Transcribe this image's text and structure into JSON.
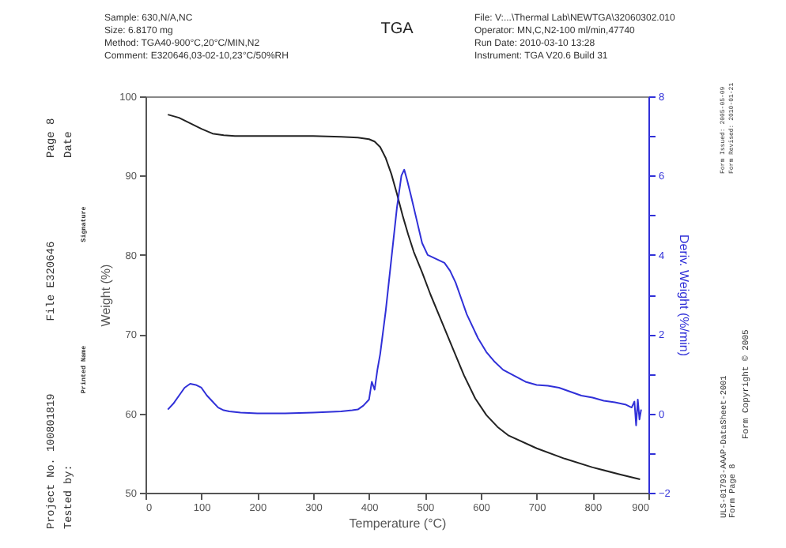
{
  "chart_data": {
    "type": "line",
    "title": "TGA",
    "xlabel": "Temperature (°C)",
    "ylabel": "Weight (%)",
    "y2label": "Deriv. Weight (%/min)",
    "xlim": [
      0,
      900
    ],
    "xticks": [
      0,
      100,
      200,
      300,
      400,
      500,
      600,
      700,
      800,
      900
    ],
    "ylim": [
      50,
      100
    ],
    "yticks": [
      50,
      60,
      70,
      80,
      90,
      100
    ],
    "y2lim": [
      -2,
      8
    ],
    "y2ticks": [
      -2,
      {
        "value": -1,
        "label": null
      },
      0,
      {
        "value": 1,
        "label": null
      },
      2,
      {
        "value": 3,
        "label": null
      },
      4,
      {
        "value": 5,
        "label": null
      },
      6,
      {
        "value": 7,
        "label": null
      },
      8
    ],
    "grid": false,
    "series": [
      {
        "color": "#222222",
        "x": [
          40,
          60,
          80,
          100,
          120,
          140,
          160,
          200,
          250,
          300,
          350,
          380,
          400,
          410,
          420,
          430,
          440,
          450,
          460,
          470,
          480,
          495,
          510,
          530,
          550,
          570,
          590,
          610,
          630,
          650,
          700,
          750,
          800,
          850,
          885
        ],
        "values": [
          97.7,
          97.3,
          96.6,
          95.9,
          95.3,
          95.1,
          95.0,
          95.0,
          95.0,
          95.0,
          94.9,
          94.8,
          94.6,
          94.3,
          93.6,
          92.2,
          90.2,
          87.7,
          85.0,
          82.6,
          80.4,
          77.8,
          75.0,
          71.6,
          68.2,
          64.8,
          61.9,
          59.8,
          58.3,
          57.2,
          55.6,
          54.3,
          53.2,
          52.3,
          51.7
        ]
      },
      {
        "color": "#3030d8",
        "axis": "y2",
        "x": [
          40,
          50,
          60,
          70,
          80,
          90,
          100,
          110,
          120,
          130,
          140,
          150,
          170,
          200,
          250,
          300,
          350,
          370,
          380,
          390,
          400,
          405,
          410,
          415,
          420,
          430,
          440,
          450,
          458,
          463,
          468,
          475,
          485,
          495,
          505,
          520,
          535,
          545,
          555,
          565,
          575,
          585,
          595,
          610,
          625,
          640,
          660,
          680,
          700,
          720,
          740,
          760,
          780,
          800,
          820,
          840,
          860,
          870,
          875,
          878,
          881,
          884,
          887
        ],
        "values": [
          0.1,
          0.25,
          0.45,
          0.65,
          0.75,
          0.72,
          0.65,
          0.45,
          0.3,
          0.15,
          0.08,
          0.05,
          0.02,
          0.0,
          0.0,
          0.02,
          0.05,
          0.08,
          0.1,
          0.2,
          0.35,
          0.8,
          0.6,
          1.1,
          1.5,
          2.6,
          3.9,
          5.2,
          6.0,
          6.15,
          5.9,
          5.5,
          4.9,
          4.3,
          4.0,
          3.9,
          3.8,
          3.6,
          3.3,
          2.9,
          2.5,
          2.2,
          1.9,
          1.55,
          1.3,
          1.1,
          0.95,
          0.8,
          0.72,
          0.7,
          0.65,
          0.55,
          0.45,
          0.4,
          0.32,
          0.28,
          0.22,
          0.15,
          0.3,
          -0.3,
          0.35,
          -0.15,
          0.1
        ]
      }
    ],
    "annotations": [
      "Sample: 630,N/A,NC",
      "Size: 6.8170 mg",
      "Method: TGA40-900°C,20°C/MIN,N2",
      "Comment: E320646,03-02-10,23°C/50%RH",
      "File: V:...\\Thermal Lab\\NEWTGA\\32060302.010",
      "Operator: MN,C,N2-100 ml/min,47740",
      "Run Date: 2010-03-10 13:28",
      "Instrument: TGA V20.6 Build 31",
      "Project No. 100801819",
      "Tested by:",
      "Printed Name",
      "File E320646",
      "Signature",
      "Page 8",
      "Date",
      "ULS-01793-AAAP-DataSheet-2001",
      "Form Page 8",
      "Form Issued: 2005-05-09",
      "Form Revised: 2010-01-21",
      "Form Copyright © 2005"
    ]
  }
}
